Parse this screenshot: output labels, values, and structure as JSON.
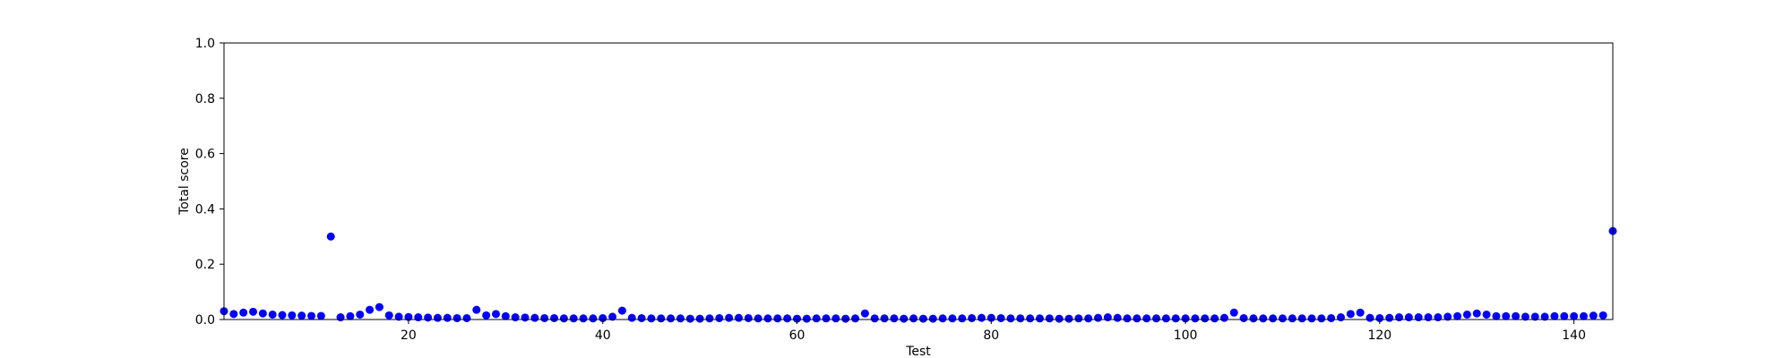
{
  "chart_data": {
    "type": "scatter",
    "title": "",
    "xlabel": "Test",
    "ylabel": "Total score",
    "xlim": [
      1,
      144
    ],
    "ylim": [
      0,
      1
    ],
    "xticks": [
      20,
      40,
      60,
      80,
      100,
      120,
      140
    ],
    "yticks": [
      0.0,
      0.2,
      0.4,
      0.6,
      0.8,
      1.0
    ],
    "xtick_labels": [
      "20",
      "40",
      "60",
      "80",
      "100",
      "120",
      "140"
    ],
    "ytick_labels": [
      "0.0",
      "0.2",
      "0.4",
      "0.6",
      "0.8",
      "1.0"
    ],
    "grid": false,
    "marker_color": "#0000ff",
    "x": [
      1,
      2,
      3,
      4,
      5,
      6,
      7,
      8,
      9,
      10,
      11,
      12,
      13,
      14,
      15,
      16,
      17,
      18,
      19,
      20,
      21,
      22,
      23,
      24,
      25,
      26,
      27,
      28,
      29,
      30,
      31,
      32,
      33,
      34,
      35,
      36,
      37,
      38,
      39,
      40,
      41,
      42,
      43,
      44,
      45,
      46,
      47,
      48,
      49,
      50,
      51,
      52,
      53,
      54,
      55,
      56,
      57,
      58,
      59,
      60,
      61,
      62,
      63,
      64,
      65,
      66,
      67,
      68,
      69,
      70,
      71,
      72,
      73,
      74,
      75,
      76,
      77,
      78,
      79,
      80,
      81,
      82,
      83,
      84,
      85,
      86,
      87,
      88,
      89,
      90,
      91,
      92,
      93,
      94,
      95,
      96,
      97,
      98,
      99,
      100,
      101,
      102,
      103,
      104,
      105,
      106,
      107,
      108,
      109,
      110,
      111,
      112,
      113,
      114,
      115,
      116,
      117,
      118,
      119,
      120,
      121,
      122,
      123,
      124,
      125,
      126,
      127,
      128,
      129,
      130,
      131,
      132,
      133,
      134,
      135,
      136,
      137,
      138,
      139,
      140,
      141,
      142,
      143,
      144
    ],
    "y": [
      0.03,
      0.02,
      0.025,
      0.028,
      0.022,
      0.018,
      0.016,
      0.015,
      0.014,
      0.013,
      0.013,
      0.3,
      0.008,
      0.012,
      0.018,
      0.035,
      0.045,
      0.015,
      0.01,
      0.009,
      0.008,
      0.007,
      0.006,
      0.006,
      0.005,
      0.005,
      0.035,
      0.015,
      0.02,
      0.012,
      0.008,
      0.007,
      0.006,
      0.005,
      0.005,
      0.004,
      0.004,
      0.004,
      0.004,
      0.005,
      0.01,
      0.032,
      0.006,
      0.005,
      0.004,
      0.004,
      0.004,
      0.004,
      0.003,
      0.003,
      0.004,
      0.005,
      0.006,
      0.006,
      0.005,
      0.004,
      0.004,
      0.004,
      0.004,
      0.003,
      0.003,
      0.004,
      0.004,
      0.004,
      0.003,
      0.004,
      0.022,
      0.004,
      0.004,
      0.004,
      0.003,
      0.004,
      0.003,
      0.003,
      0.004,
      0.004,
      0.004,
      0.005,
      0.006,
      0.006,
      0.005,
      0.004,
      0.004,
      0.004,
      0.004,
      0.004,
      0.003,
      0.003,
      0.004,
      0.004,
      0.006,
      0.008,
      0.006,
      0.004,
      0.004,
      0.004,
      0.004,
      0.004,
      0.004,
      0.004,
      0.004,
      0.004,
      0.004,
      0.006,
      0.025,
      0.005,
      0.004,
      0.004,
      0.004,
      0.004,
      0.004,
      0.004,
      0.004,
      0.004,
      0.005,
      0.008,
      0.02,
      0.025,
      0.006,
      0.005,
      0.006,
      0.008,
      0.008,
      0.008,
      0.008,
      0.008,
      0.01,
      0.012,
      0.018,
      0.022,
      0.018,
      0.012,
      0.012,
      0.012,
      0.01,
      0.01,
      0.01,
      0.012,
      0.012,
      0.012,
      0.012,
      0.014,
      0.015,
      0.32
    ]
  }
}
